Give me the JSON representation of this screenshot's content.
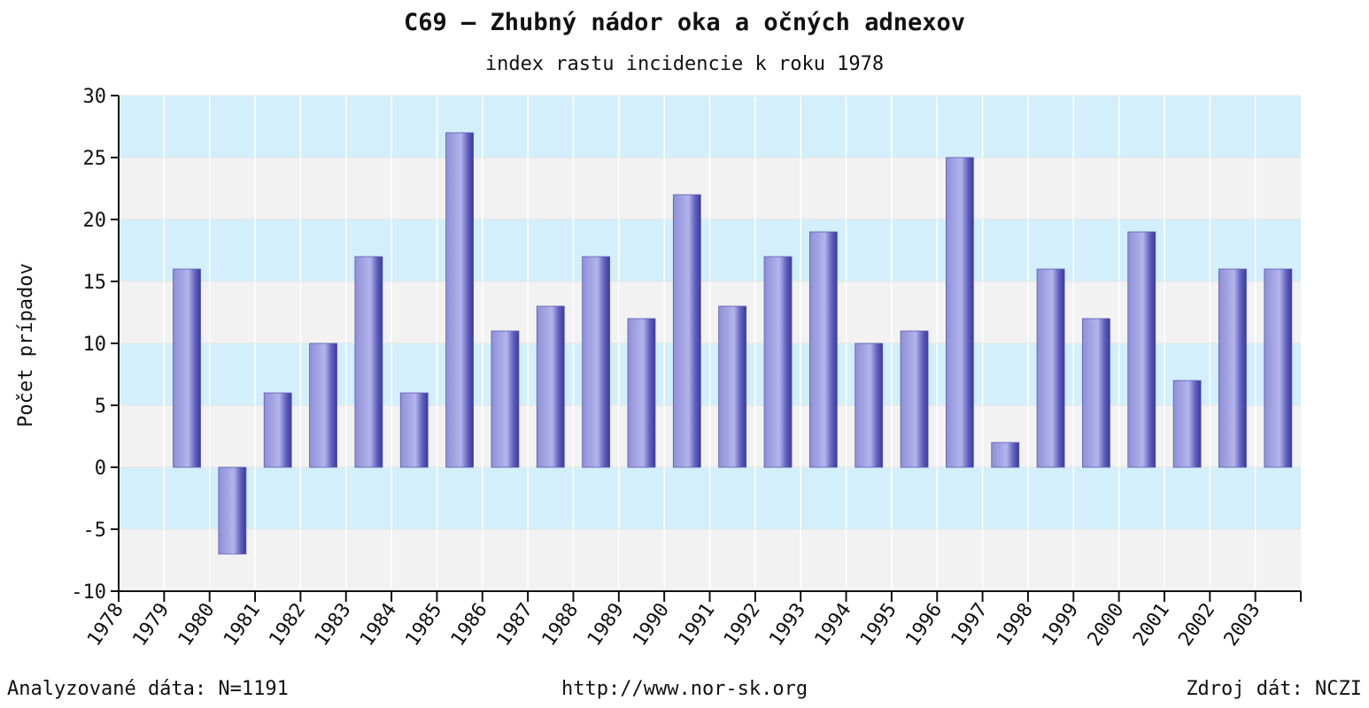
{
  "chart_data": {
    "type": "bar",
    "title": "C69 – Zhubný nádor oka a očných adnexov",
    "subtitle": "index rastu incidencie k roku 1978",
    "ylabel": "Počet prípadov",
    "xlabel": "",
    "ylim": [
      -10,
      30
    ],
    "yticks": [
      -10,
      -5,
      0,
      5,
      10,
      15,
      20,
      25,
      30
    ],
    "categories": [
      "1978",
      "1979",
      "1980",
      "1981",
      "1982",
      "1983",
      "1984",
      "1985",
      "1986",
      "1987",
      "1988",
      "1989",
      "1990",
      "1991",
      "1992",
      "1993",
      "1994",
      "1995",
      "1996",
      "1997",
      "1998",
      "1999",
      "2000",
      "2001",
      "2002",
      "2003"
    ],
    "values": [
      null,
      16,
      -7,
      6,
      10,
      17,
      6,
      27,
      11,
      13,
      17,
      12,
      22,
      13,
      17,
      19,
      10,
      11,
      25,
      2,
      16,
      12,
      19,
      7,
      16,
      16
    ],
    "grid": true,
    "band_colors": [
      "#d3effb",
      "#f2f2f2"
    ],
    "bar_color": "#8f8fd8",
    "bar_dark_color": "#3a3a9a"
  },
  "footer": {
    "left": "Analyzované dáta: N=1191",
    "center": "http://www.nor-sk.org",
    "right": "Zdroj dát: NCZI"
  }
}
